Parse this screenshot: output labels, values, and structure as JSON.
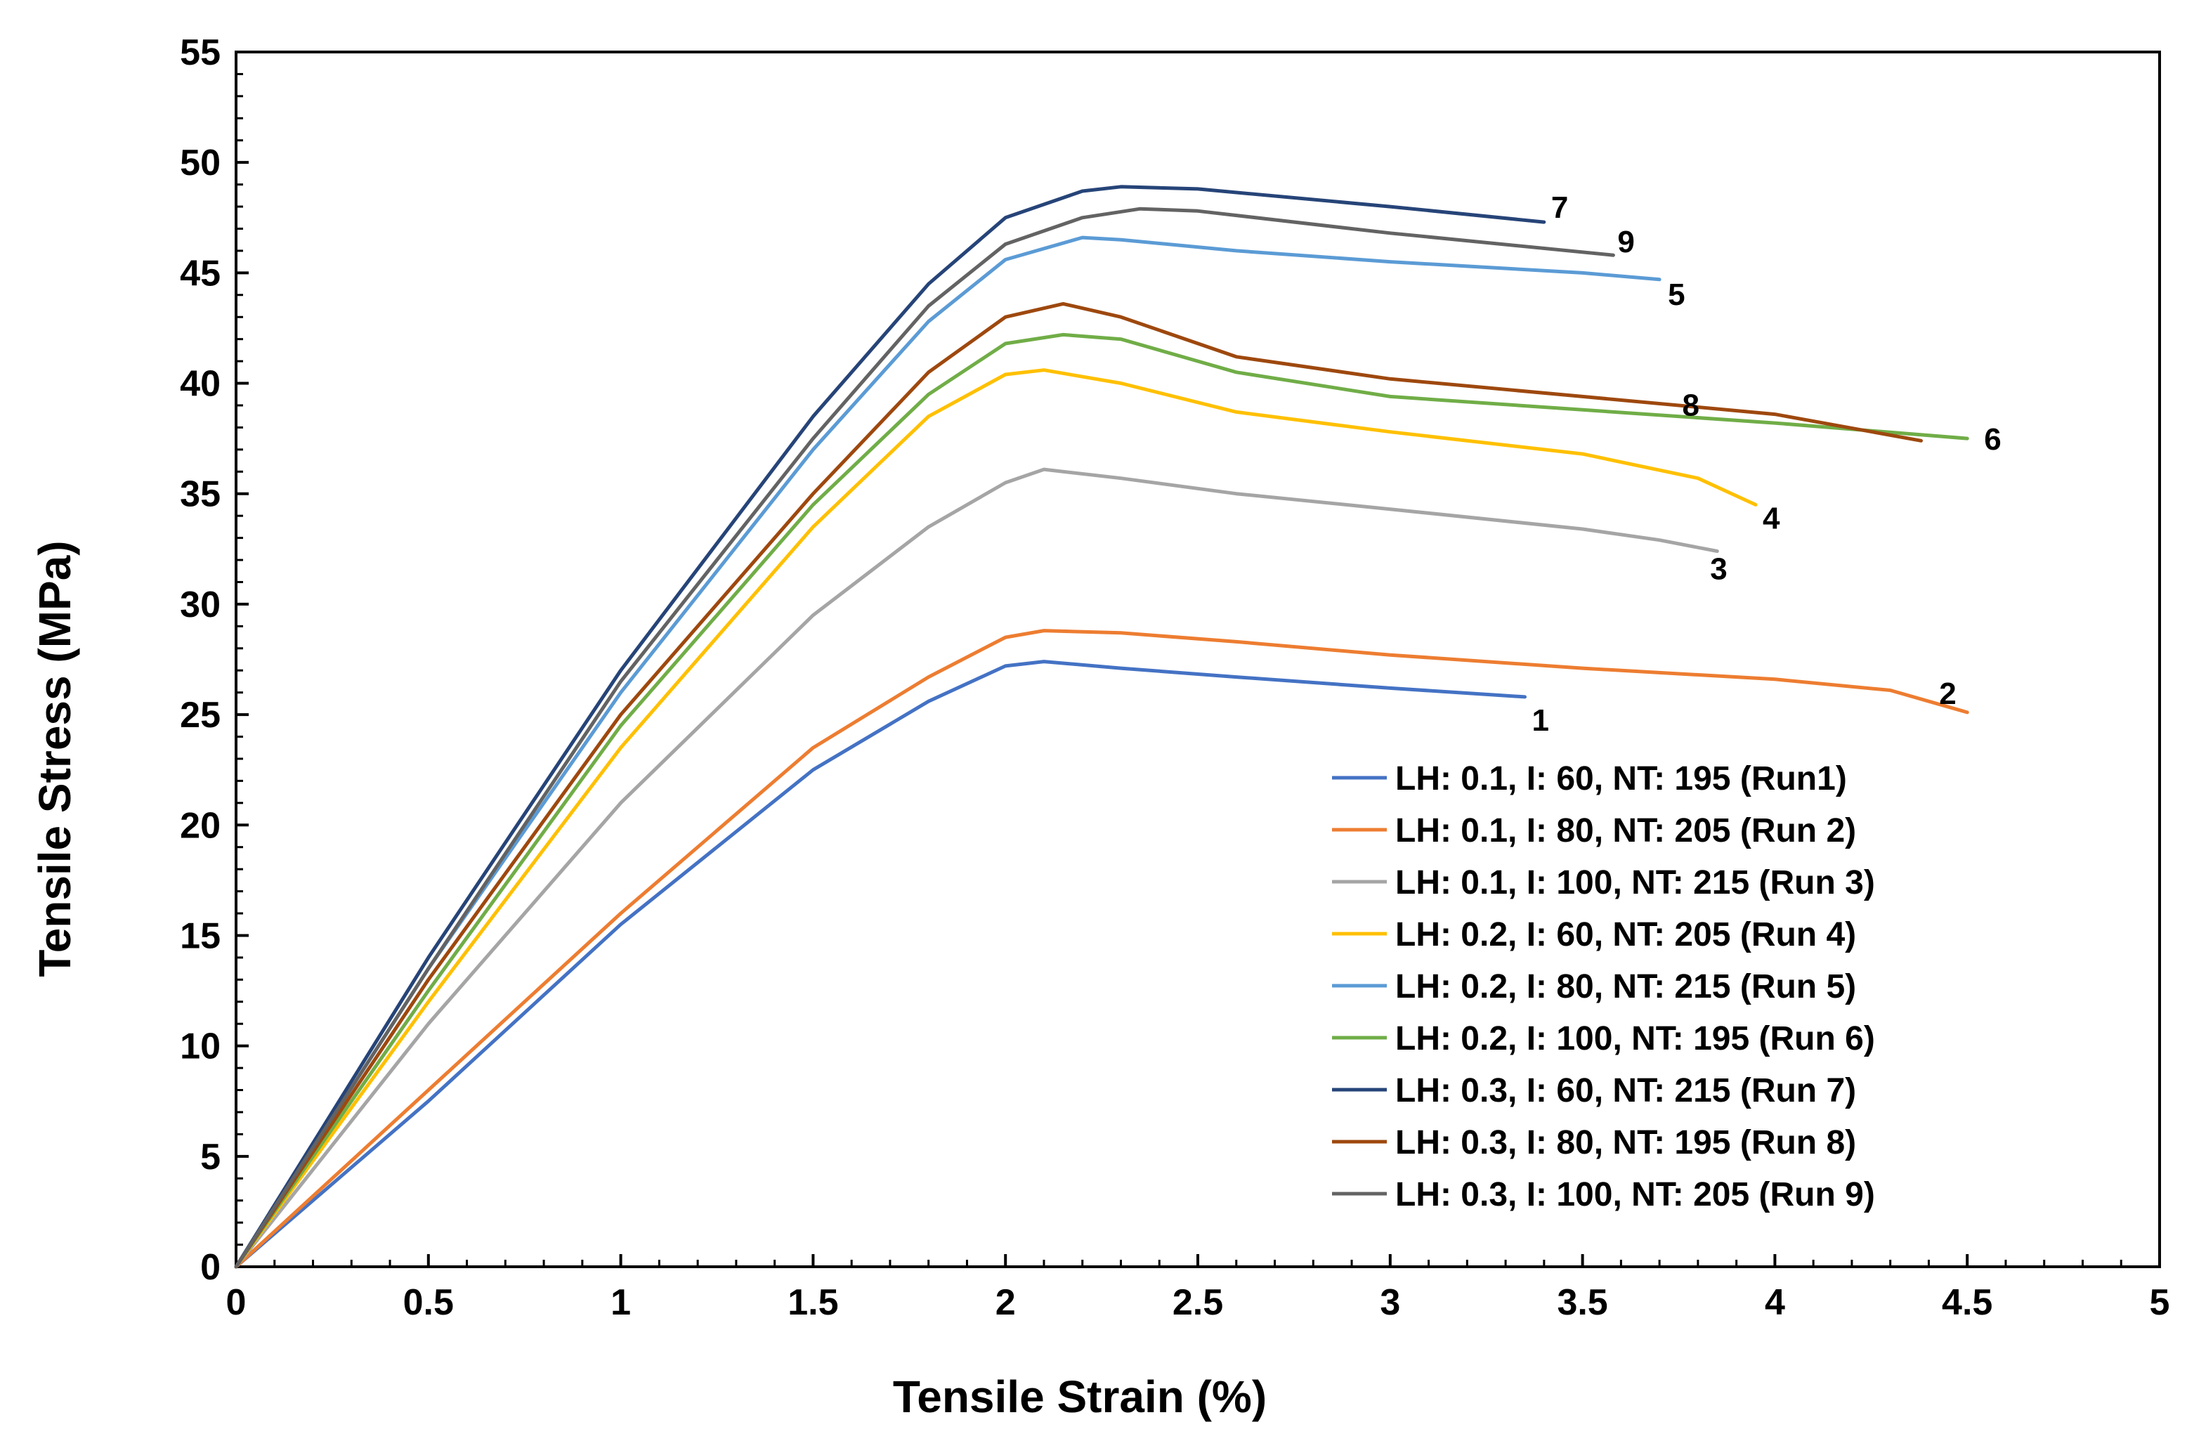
{
  "chart_data": {
    "type": "line",
    "title": "",
    "xlabel": "Tensile Strain (%)",
    "ylabel": "Tensile Stress (MPa)",
    "xlim": [
      0,
      5
    ],
    "ylim": [
      0,
      55
    ],
    "x_ticks": [
      "0",
      "0.5",
      "1",
      "1.5",
      "2",
      "2.5",
      "3",
      "3.5",
      "4",
      "4.5",
      "5"
    ],
    "y_ticks": [
      "0",
      "5",
      "10",
      "15",
      "20",
      "25",
      "30",
      "35",
      "40",
      "45",
      "50",
      "55"
    ],
    "grid": false,
    "legend_position": "bottom-right",
    "series": [
      {
        "name": "LH: 0.1, I: 60, NT: 195 (Run1)",
        "label": "1",
        "color": "#4472C4",
        "points": [
          [
            0,
            0
          ],
          [
            0.5,
            7.5
          ],
          [
            1,
            15.5
          ],
          [
            1.5,
            22.5
          ],
          [
            1.8,
            25.6
          ],
          [
            2.0,
            27.2
          ],
          [
            2.1,
            27.4
          ],
          [
            2.3,
            27.1
          ],
          [
            2.6,
            26.7
          ],
          [
            3.0,
            26.2
          ],
          [
            3.35,
            25.8
          ]
        ]
      },
      {
        "name": "LH: 0.1, I: 80, NT: 205 (Run 2)",
        "label": "2",
        "color": "#ED7D31",
        "points": [
          [
            0,
            0
          ],
          [
            0.5,
            8
          ],
          [
            1,
            16
          ],
          [
            1.5,
            23.5
          ],
          [
            1.8,
            26.7
          ],
          [
            2.0,
            28.5
          ],
          [
            2.1,
            28.8
          ],
          [
            2.3,
            28.7
          ],
          [
            2.6,
            28.3
          ],
          [
            3.0,
            27.7
          ],
          [
            3.5,
            27.1
          ],
          [
            4.0,
            26.6
          ],
          [
            4.3,
            26.1
          ],
          [
            4.4,
            25.6
          ],
          [
            4.5,
            25.1
          ]
        ]
      },
      {
        "name": "LH: 0.1, I: 100, NT: 215 (Run 3)",
        "label": "3",
        "color": "#A5A5A5",
        "points": [
          [
            0,
            0
          ],
          [
            0.5,
            11
          ],
          [
            1,
            21
          ],
          [
            1.5,
            29.5
          ],
          [
            1.8,
            33.5
          ],
          [
            2.0,
            35.5
          ],
          [
            2.1,
            36.1
          ],
          [
            2.3,
            35.7
          ],
          [
            2.6,
            35
          ],
          [
            3.0,
            34.3
          ],
          [
            3.5,
            33.4
          ],
          [
            3.7,
            32.9
          ],
          [
            3.85,
            32.4
          ]
        ]
      },
      {
        "name": "LH: 0.2, I: 60, NT: 205 (Run 4)",
        "label": "4",
        "color": "#FFC000",
        "points": [
          [
            0,
            0
          ],
          [
            0.5,
            12
          ],
          [
            1,
            23.5
          ],
          [
            1.5,
            33.5
          ],
          [
            1.8,
            38.5
          ],
          [
            2.0,
            40.4
          ],
          [
            2.1,
            40.6
          ],
          [
            2.3,
            40
          ],
          [
            2.6,
            38.7
          ],
          [
            3.0,
            37.8
          ],
          [
            3.5,
            36.8
          ],
          [
            3.8,
            35.7
          ],
          [
            3.95,
            34.5
          ]
        ]
      },
      {
        "name": "LH: 0.2, I: 80, NT: 215 (Run 5)",
        "label": "5",
        "color": "#5B9BD5",
        "points": [
          [
            0,
            0
          ],
          [
            0.5,
            13.5
          ],
          [
            1,
            26
          ],
          [
            1.5,
            37
          ],
          [
            1.8,
            42.8
          ],
          [
            2.0,
            45.6
          ],
          [
            2.2,
            46.6
          ],
          [
            2.3,
            46.5
          ],
          [
            2.6,
            46
          ],
          [
            3.0,
            45.5
          ],
          [
            3.5,
            45
          ],
          [
            3.7,
            44.7
          ]
        ]
      },
      {
        "name": "LH: 0.2, I: 100, NT: 195 (Run 6)",
        "label": "6",
        "color": "#70AD47",
        "points": [
          [
            0,
            0
          ],
          [
            0.5,
            12.5
          ],
          [
            1,
            24.5
          ],
          [
            1.5,
            34.5
          ],
          [
            1.8,
            39.5
          ],
          [
            2.0,
            41.8
          ],
          [
            2.15,
            42.2
          ],
          [
            2.3,
            42
          ],
          [
            2.6,
            40.5
          ],
          [
            3.0,
            39.4
          ],
          [
            3.5,
            38.8
          ],
          [
            4.0,
            38.2
          ],
          [
            4.5,
            37.5
          ]
        ]
      },
      {
        "name": "LH: 0.3, I: 60, NT: 215 (Run 7)",
        "label": "7",
        "color": "#264478",
        "points": [
          [
            0,
            0
          ],
          [
            0.5,
            14
          ],
          [
            1,
            27
          ],
          [
            1.5,
            38.5
          ],
          [
            1.8,
            44.5
          ],
          [
            2.0,
            47.5
          ],
          [
            2.2,
            48.7
          ],
          [
            2.3,
            48.9
          ],
          [
            2.5,
            48.8
          ],
          [
            3.0,
            48
          ],
          [
            3.4,
            47.3
          ]
        ]
      },
      {
        "name": "LH: 0.3, I: 80, NT: 195 (Run 8)",
        "label": "8",
        "color": "#9E480E",
        "points": [
          [
            0,
            0
          ],
          [
            0.5,
            13
          ],
          [
            1,
            25
          ],
          [
            1.5,
            35
          ],
          [
            1.8,
            40.5
          ],
          [
            2.0,
            43.0
          ],
          [
            2.15,
            43.6
          ],
          [
            2.3,
            43
          ],
          [
            2.6,
            41.2
          ],
          [
            3.0,
            40.2
          ],
          [
            3.5,
            39.4
          ],
          [
            4.0,
            38.6
          ],
          [
            4.38,
            37.4
          ]
        ]
      },
      {
        "name": "LH: 0.3, I: 100, NT: 205 (Run 9)",
        "label": "9",
        "color": "#636363",
        "points": [
          [
            0,
            0
          ],
          [
            0.5,
            13.5
          ],
          [
            1,
            26.5
          ],
          [
            1.5,
            37.5
          ],
          [
            1.8,
            43.5
          ],
          [
            2.0,
            46.3
          ],
          [
            2.2,
            47.5
          ],
          [
            2.35,
            47.9
          ],
          [
            2.5,
            47.8
          ],
          [
            3.0,
            46.8
          ],
          [
            3.58,
            45.8
          ]
        ]
      }
    ]
  }
}
